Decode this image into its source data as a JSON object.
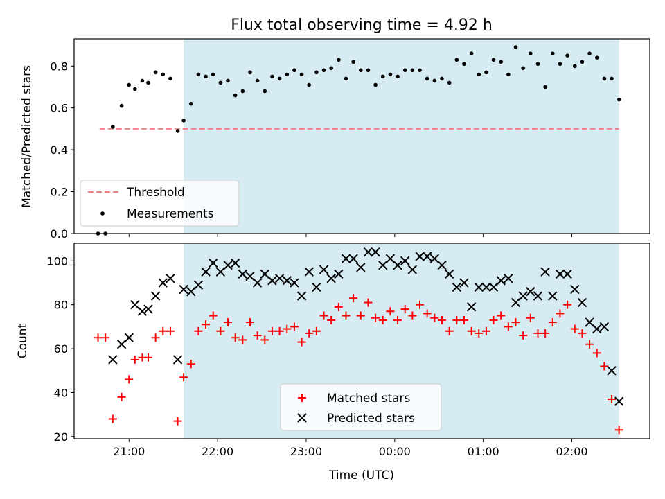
{
  "title": "Flux total observing time = 4.92 h",
  "colors": {
    "shade": "#add8e6",
    "threshold": "#f08080",
    "measurements": "#000000",
    "matched": "#ff0000",
    "predicted": "#000000"
  },
  "chart_data": [
    {
      "type": "scatter",
      "ylabel": "Matched/Predicted stars",
      "xlabel": "",
      "ylim": [
        0,
        0.93
      ],
      "yticks": [
        "0.0",
        "0.2",
        "0.4",
        "0.6",
        "0.8"
      ],
      "xlim_hours": [
        20.38,
        26.88
      ],
      "xticks": [
        "21:00",
        "22:00",
        "23:00",
        "00:00",
        "01:00",
        "02:00"
      ],
      "shaded_region": {
        "start": "21:37",
        "end": "02:32"
      },
      "legend": {
        "position": "lower left",
        "entries": [
          "Threshold",
          "Measurements"
        ]
      },
      "threshold": {
        "name": "Threshold",
        "value": 0.5,
        "start": "20:40",
        "end": "02:32"
      },
      "series": [
        {
          "name": "Measurements",
          "marker": "dot",
          "x": [
            "20:39",
            "20:44",
            "20:49",
            "20:55",
            "21:00",
            "21:04",
            "21:09",
            "21:13",
            "21:18",
            "21:23",
            "21:28",
            "21:33",
            "21:37",
            "21:42",
            "21:47",
            "21:52",
            "21:57",
            "22:02",
            "22:07",
            "22:12",
            "22:17",
            "22:22",
            "22:27",
            "22:32",
            "22:37",
            "22:42",
            "22:47",
            "22:52",
            "22:57",
            "23:02",
            "23:07",
            "23:12",
            "23:17",
            "23:22",
            "23:27",
            "23:32",
            "23:37",
            "23:42",
            "23:47",
            "23:52",
            "23:57",
            "00:02",
            "00:07",
            "00:12",
            "00:17",
            "00:22",
            "00:27",
            "00:32",
            "00:37",
            "00:42",
            "00:47",
            "00:52",
            "00:57",
            "01:02",
            "01:07",
            "01:12",
            "01:17",
            "01:22",
            "01:27",
            "01:32",
            "01:37",
            "01:42",
            "01:47",
            "01:52",
            "01:57",
            "02:02",
            "02:07",
            "02:12",
            "02:17",
            "02:22",
            "02:27",
            "02:32"
          ],
          "y": [
            0.0,
            0.0,
            0.51,
            0.61,
            0.71,
            0.69,
            0.73,
            0.72,
            0.77,
            0.76,
            0.74,
            0.49,
            0.54,
            0.62,
            0.76,
            0.75,
            0.76,
            0.72,
            0.73,
            0.66,
            0.68,
            0.77,
            0.73,
            0.68,
            0.75,
            0.74,
            0.76,
            0.78,
            0.76,
            0.71,
            0.77,
            0.78,
            0.79,
            0.83,
            0.74,
            0.82,
            0.78,
            0.78,
            0.71,
            0.75,
            0.76,
            0.75,
            0.78,
            0.78,
            0.78,
            0.74,
            0.73,
            0.74,
            0.72,
            0.83,
            0.81,
            0.86,
            0.76,
            0.77,
            0.83,
            0.82,
            0.76,
            0.89,
            0.79,
            0.86,
            0.81,
            0.7,
            0.86,
            0.81,
            0.85,
            0.8,
            0.82,
            0.86,
            0.84,
            0.74,
            0.74,
            0.64
          ]
        }
      ]
    },
    {
      "type": "scatter",
      "ylabel": "Count",
      "xlabel": "Time (UTC)",
      "ylim": [
        19,
        108
      ],
      "yticks": [
        "20",
        "40",
        "60",
        "80",
        "100"
      ],
      "xlim_hours": [
        20.38,
        26.88
      ],
      "xticks": [
        "21:00",
        "22:00",
        "23:00",
        "00:00",
        "01:00",
        "02:00"
      ],
      "shaded_region": {
        "start": "21:37",
        "end": "02:32"
      },
      "legend": {
        "position": "lower center",
        "entries": [
          "Matched stars",
          "Predicted stars"
        ]
      },
      "series": [
        {
          "name": "Matched stars",
          "marker": "plus",
          "x": [
            "20:39",
            "20:44",
            "20:49",
            "20:55",
            "21:00",
            "21:04",
            "21:09",
            "21:13",
            "21:18",
            "21:23",
            "21:28",
            "21:33",
            "21:37",
            "21:42",
            "21:47",
            "21:52",
            "21:57",
            "22:02",
            "22:07",
            "22:12",
            "22:17",
            "22:22",
            "22:27",
            "22:32",
            "22:37",
            "22:42",
            "22:47",
            "22:52",
            "22:57",
            "23:02",
            "23:07",
            "23:12",
            "23:17",
            "23:22",
            "23:27",
            "23:32",
            "23:37",
            "23:42",
            "23:47",
            "23:52",
            "23:57",
            "00:02",
            "00:07",
            "00:12",
            "00:17",
            "00:22",
            "00:27",
            "00:32",
            "00:37",
            "00:42",
            "00:47",
            "00:52",
            "00:57",
            "01:02",
            "01:07",
            "01:12",
            "01:17",
            "01:22",
            "01:27",
            "01:32",
            "01:37",
            "01:42",
            "01:47",
            "01:52",
            "01:57",
            "02:02",
            "02:07",
            "02:12",
            "02:17",
            "02:22",
            "02:27",
            "02:32"
          ],
          "y": [
            65,
            65,
            28,
            38,
            46,
            55,
            56,
            56,
            65,
            68,
            68,
            27,
            47,
            53,
            68,
            71,
            75,
            68,
            72,
            65,
            64,
            72,
            66,
            64,
            68,
            68,
            69,
            70,
            63,
            67,
            68,
            75,
            73,
            79,
            75,
            83,
            75,
            81,
            74,
            73,
            77,
            73,
            78,
            75,
            80,
            76,
            74,
            73,
            68,
            73,
            73,
            68,
            67,
            68,
            73,
            75,
            70,
            72,
            66,
            74,
            67,
            67,
            72,
            76,
            80,
            69,
            67,
            62,
            58,
            52,
            37,
            23
          ]
        },
        {
          "name": "Predicted stars",
          "marker": "x",
          "x": [
            "20:49",
            "20:55",
            "21:00",
            "21:04",
            "21:09",
            "21:13",
            "21:18",
            "21:23",
            "21:28",
            "21:33",
            "21:37",
            "21:42",
            "21:47",
            "21:52",
            "21:57",
            "22:02",
            "22:07",
            "22:12",
            "22:17",
            "22:22",
            "22:27",
            "22:32",
            "22:37",
            "22:42",
            "22:47",
            "22:52",
            "22:57",
            "23:02",
            "23:07",
            "23:12",
            "23:17",
            "23:22",
            "23:27",
            "23:32",
            "23:37",
            "23:42",
            "23:47",
            "23:52",
            "23:57",
            "00:02",
            "00:07",
            "00:12",
            "00:17",
            "00:22",
            "00:27",
            "00:32",
            "00:37",
            "00:42",
            "00:47",
            "00:52",
            "00:57",
            "01:02",
            "01:07",
            "01:12",
            "01:17",
            "01:22",
            "01:27",
            "01:32",
            "01:37",
            "01:42",
            "01:47",
            "01:52",
            "01:57",
            "02:02",
            "02:07",
            "02:12",
            "02:17",
            "02:22",
            "02:27",
            "02:32"
          ],
          "y": [
            55,
            62,
            65,
            80,
            77,
            78,
            84,
            90,
            92,
            55,
            87,
            86,
            89,
            95,
            99,
            95,
            98,
            99,
            94,
            93,
            90,
            94,
            91,
            92,
            91,
            90,
            84,
            95,
            88,
            96,
            92,
            94,
            101,
            101,
            97,
            104,
            104,
            98,
            101,
            98,
            100,
            96,
            102,
            102,
            101,
            98,
            94,
            88,
            90,
            79,
            88,
            88,
            88,
            91,
            92,
            81,
            84,
            86,
            84,
            95,
            84,
            94,
            94,
            87,
            81,
            72,
            69,
            70,
            50,
            36
          ]
        }
      ]
    }
  ]
}
